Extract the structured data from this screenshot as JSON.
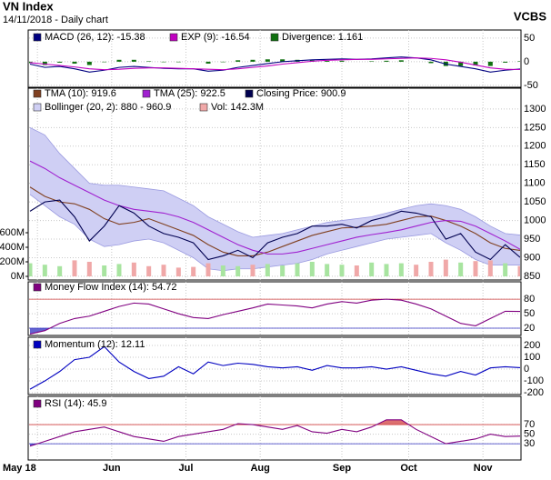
{
  "header": {
    "title": "VN Index",
    "subtitle": "14/11/2018 - Daily chart",
    "brand": "VCBS"
  },
  "chart_data": [
    {
      "type": "line",
      "xlim": [
        0,
        132
      ],
      "ylim": [
        -54,
        67
      ],
      "yticks": [
        50,
        0,
        -50
      ],
      "grid": true,
      "x": [
        0,
        4,
        8,
        12,
        16,
        20,
        24,
        28,
        32,
        36,
        40,
        44,
        48,
        52,
        56,
        60,
        64,
        68,
        72,
        76,
        80,
        84,
        88,
        92,
        96,
        100,
        104,
        108,
        112,
        116,
        120,
        124,
        128,
        132
      ],
      "series": [
        {
          "name": "MACD (26, 12): -15.38",
          "type": "line",
          "color": "#000080",
          "values": [
            -5,
            -12,
            -10,
            -15,
            -22,
            -18,
            -12,
            -10,
            -12,
            -14,
            -15,
            -15,
            -20,
            -18,
            -12,
            -8,
            -4,
            0,
            2,
            4,
            5,
            6,
            5,
            6,
            8,
            10,
            8,
            4,
            -5,
            -10,
            -15,
            -22,
            -18,
            -15.38
          ]
        },
        {
          "name": "EXP (9): -16.54",
          "type": "line",
          "color": "#c000c0",
          "values": [
            -2,
            -5,
            -8,
            -11,
            -15,
            -17,
            -16,
            -14,
            -13,
            -13,
            -14,
            -15,
            -16,
            -17,
            -15,
            -12,
            -9,
            -5,
            -2,
            1,
            3,
            4,
            5,
            5,
            6,
            7,
            8,
            7,
            4,
            -1,
            -7,
            -13,
            -16,
            -16.54
          ]
        },
        {
          "name": "Divergence: 1.161",
          "type": "bar",
          "color": "#107010",
          "values": [
            -3,
            -7,
            -2,
            -4,
            -7,
            -1,
            4,
            4,
            1,
            -1,
            -1,
            0,
            -4,
            -1,
            3,
            4,
            5,
            5,
            4,
            3,
            2,
            2,
            0,
            1,
            2,
            3,
            0,
            -3,
            -9,
            -9,
            -8,
            -9,
            -2,
            1.161
          ]
        }
      ]
    },
    {
      "type": "line",
      "xlim": [
        0,
        132
      ],
      "ylim": [
        840,
        1356
      ],
      "yticks": [
        850,
        900,
        950,
        1000,
        1050,
        1100,
        1150,
        1200,
        1250,
        1300
      ],
      "grid": true,
      "y2lim": [
        -50,
        2587
      ],
      "y2ticks": [
        {
          "value": 0,
          "label": "0M"
        },
        {
          "value": 200,
          "label": "200M"
        },
        {
          "value": 400,
          "label": "400M"
        },
        {
          "value": 600,
          "label": "600M"
        }
      ],
      "x": [
        0,
        4,
        8,
        12,
        16,
        20,
        24,
        28,
        32,
        36,
        40,
        44,
        48,
        52,
        56,
        60,
        64,
        68,
        72,
        76,
        80,
        84,
        88,
        92,
        96,
        100,
        104,
        108,
        112,
        116,
        120,
        124,
        128,
        132
      ],
      "series": [
        {
          "name": "TMA (10): 919.6",
          "type": "line",
          "color": "#804020",
          "values": [
            1090,
            1065,
            1050,
            1045,
            1030,
            1005,
            990,
            995,
            1005,
            990,
            975,
            960,
            935,
            915,
            905,
            905,
            915,
            930,
            945,
            960,
            970,
            980,
            982,
            985,
            990,
            1000,
            1010,
            1012,
            1000,
            985,
            965,
            940,
            925,
            919.6
          ]
        },
        {
          "name": "TMA (25): 922.5",
          "type": "line",
          "color": "#a020d0",
          "values": [
            1160,
            1140,
            1115,
            1095,
            1075,
            1055,
            1040,
            1030,
            1025,
            1020,
            1010,
            995,
            975,
            955,
            935,
            920,
            910,
            910,
            915,
            925,
            935,
            945,
            955,
            962,
            968,
            975,
            985,
            995,
            1000,
            998,
            985,
            965,
            945,
            922.5
          ]
        },
        {
          "name": "Closing Price: 900.9",
          "type": "line",
          "color": "#000050",
          "values": [
            1025,
            1050,
            1055,
            1010,
            945,
            985,
            1040,
            1020,
            985,
            965,
            955,
            940,
            895,
            905,
            920,
            900,
            940,
            955,
            965,
            985,
            985,
            990,
            980,
            1000,
            1010,
            1025,
            1020,
            1010,
            950,
            965,
            915,
            895,
            935,
            900.9
          ]
        },
        {
          "name": "Bollinger (20, 2): 880 - 960.9",
          "type": "band",
          "color": "#cfcff4",
          "upper": [
            1250,
            1230,
            1180,
            1140,
            1100,
            1095,
            1095,
            1090,
            1085,
            1080,
            1060,
            1040,
            1010,
            990,
            970,
            955,
            960,
            965,
            975,
            985,
            995,
            1000,
            1005,
            1010,
            1020,
            1030,
            1040,
            1045,
            1040,
            1030,
            1010,
            985,
            965,
            960.9
          ],
          "lower": [
            1070,
            1040,
            1010,
            990,
            950,
            930,
            935,
            945,
            950,
            940,
            920,
            900,
            870,
            865,
            870,
            870,
            875,
            880,
            885,
            895,
            910,
            920,
            930,
            940,
            950,
            955,
            960,
            965,
            940,
            920,
            895,
            880,
            880,
            880
          ]
        },
        {
          "name": "Vol: 142.3M",
          "type": "bar",
          "axis": "y2",
          "color": "#f0a8a8",
          "up_color": "#a8e4a0",
          "values": [
            180,
            160,
            140,
            220,
            200,
            150,
            170,
            190,
            140,
            160,
            120,
            130,
            180,
            150,
            140,
            160,
            170,
            150,
            180,
            200,
            170,
            160,
            150,
            190,
            170,
            180,
            160,
            200,
            230,
            190,
            210,
            220,
            180,
            142.3
          ]
        }
      ]
    },
    {
      "type": "line",
      "xlim": [
        0,
        132
      ],
      "ylim": [
        5,
        116
      ],
      "yticks": [
        80,
        50,
        20
      ],
      "grid": true,
      "levels": [
        {
          "value": 80,
          "color": "#d04040",
          "side": "above"
        },
        {
          "value": 20,
          "color": "#3030c0",
          "side": "below"
        }
      ],
      "x": [
        0,
        4,
        8,
        12,
        16,
        20,
        24,
        28,
        32,
        36,
        40,
        44,
        48,
        52,
        56,
        60,
        64,
        68,
        72,
        76,
        80,
        84,
        88,
        92,
        96,
        100,
        104,
        108,
        112,
        116,
        120,
        124,
        128,
        132
      ],
      "series": [
        {
          "name": "Money Flow Index (14): 54.72",
          "type": "line",
          "color": "#800080",
          "values": [
            8,
            15,
            30,
            40,
            45,
            55,
            65,
            72,
            70,
            60,
            50,
            42,
            40,
            48,
            55,
            62,
            70,
            68,
            66,
            62,
            70,
            75,
            72,
            78,
            80,
            78,
            70,
            60,
            45,
            30,
            25,
            40,
            55,
            54.72
          ]
        }
      ]
    },
    {
      "type": "line",
      "xlim": [
        0,
        132
      ],
      "ylim": [
        -215,
        269
      ],
      "yticks": [
        200,
        100,
        0,
        -100,
        -200
      ],
      "grid": true,
      "x": [
        0,
        4,
        8,
        12,
        16,
        20,
        24,
        28,
        32,
        36,
        40,
        44,
        48,
        52,
        56,
        60,
        64,
        68,
        72,
        76,
        80,
        84,
        88,
        92,
        96,
        100,
        104,
        108,
        112,
        116,
        120,
        124,
        128,
        132
      ],
      "series": [
        {
          "name": "Momentum (12): 12.11",
          "type": "line",
          "color": "#0000c0",
          "values": [
            -170,
            -100,
            -20,
            80,
            100,
            190,
            60,
            -20,
            -80,
            -60,
            20,
            -40,
            60,
            30,
            50,
            40,
            20,
            10,
            20,
            -10,
            30,
            10,
            10,
            20,
            0,
            20,
            -10,
            -40,
            -60,
            -20,
            -50,
            10,
            20,
            12.11
          ]
        }
      ]
    },
    {
      "type": "line",
      "xlim": [
        0,
        132
      ],
      "ylim": [
        -4,
        129
      ],
      "yticks": [
        70,
        50,
        30
      ],
      "grid": true,
      "levels": [
        {
          "value": 70,
          "color": "#d04040",
          "side": "above"
        },
        {
          "value": 30,
          "color": "#3030c0",
          "side": "below"
        }
      ],
      "xticks": [
        {
          "value": 2,
          "label": "May 18"
        },
        {
          "value": 22,
          "label": "Jun"
        },
        {
          "value": 42,
          "label": "Jul"
        },
        {
          "value": 62,
          "label": "Aug"
        },
        {
          "value": 84,
          "label": "Sep"
        },
        {
          "value": 102,
          "label": "Oct"
        },
        {
          "value": 122,
          "label": "Nov"
        }
      ],
      "x": [
        0,
        4,
        8,
        12,
        16,
        20,
        24,
        28,
        32,
        36,
        40,
        44,
        48,
        52,
        56,
        60,
        64,
        68,
        72,
        76,
        80,
        84,
        88,
        92,
        96,
        100,
        104,
        108,
        112,
        116,
        120,
        124,
        128,
        132
      ],
      "series": [
        {
          "name": "RSI (14): 45.9",
          "type": "line",
          "color": "#800080",
          "values": [
            25,
            35,
            45,
            55,
            60,
            65,
            55,
            45,
            40,
            35,
            45,
            50,
            55,
            60,
            72,
            70,
            65,
            60,
            68,
            55,
            52,
            60,
            55,
            65,
            80,
            80,
            60,
            45,
            30,
            35,
            40,
            50,
            45,
            45.9
          ]
        }
      ]
    }
  ]
}
